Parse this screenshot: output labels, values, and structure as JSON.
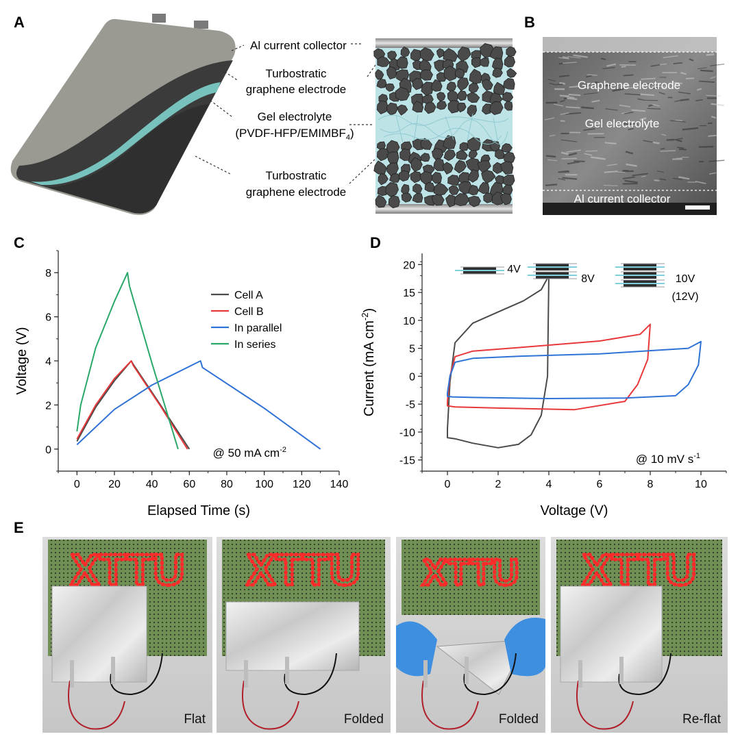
{
  "panels": {
    "a": {
      "letter": "A",
      "labels": {
        "al": "Al current collector",
        "el1a": "Turbostratic",
        "el1b": "graphene electrode",
        "gel1": "Gel electrolyte",
        "gel2": "(PVDF-HFP/EMIMBF",
        "gel_sub": "4",
        "gel_close": ")",
        "el2a": "Turbostratic",
        "el2b": "graphene electrode"
      }
    },
    "b": {
      "letter": "B",
      "labels": {
        "electrode": "Graphene electrode",
        "gel": "Gel electrolyte",
        "al": "Al current collector"
      }
    },
    "e": {
      "letter": "E",
      "board_text": "XTTU",
      "photos": [
        "Flat",
        "Folded",
        "Folded",
        "Re-flat"
      ]
    }
  },
  "colors": {
    "cell_a": "#4a4a4a",
    "cell_b": "#e8383b",
    "parallel": "#2f72d6",
    "series": "#2aa86a",
    "electrolyte": "#a8dde3",
    "led": "#ff2a2a"
  },
  "chart_data": [
    {
      "panel": "C",
      "type": "line",
      "xlabel": "Elapsed Time (s)",
      "ylabel": "Voltage (V)",
      "xlim": [
        -10,
        140
      ],
      "ylim": [
        -1,
        9
      ],
      "xticks": [
        0,
        20,
        40,
        60,
        80,
        100,
        120,
        140
      ],
      "yticks": [
        0,
        2,
        4,
        6,
        8
      ],
      "annotation": "@ 50 mA cm",
      "annotation_sup": "-2",
      "legend_position": "top-right",
      "series": [
        {
          "name": "Cell A",
          "color_key": "cell_a",
          "x": [
            0,
            10,
            20,
            29,
            30,
            45,
            60
          ],
          "y": [
            0.35,
            1.9,
            3.1,
            4.0,
            3.85,
            1.95,
            0.0
          ]
        },
        {
          "name": "Cell B",
          "color_key": "cell_b",
          "x": [
            0,
            10,
            20,
            29,
            30,
            45,
            59
          ],
          "y": [
            0.45,
            2.0,
            3.2,
            4.0,
            3.8,
            1.9,
            0.0
          ]
        },
        {
          "name": "In parallel",
          "color_key": "parallel",
          "x": [
            0,
            20,
            40,
            66,
            67,
            100,
            130
          ],
          "y": [
            0.2,
            1.8,
            2.9,
            4.0,
            3.7,
            1.85,
            0.0
          ]
        },
        {
          "name": "In series",
          "color_key": "series",
          "x": [
            0,
            2,
            10,
            20,
            27,
            28,
            40,
            54
          ],
          "y": [
            0.8,
            2.0,
            4.6,
            6.7,
            8.0,
            7.4,
            3.9,
            0.0
          ]
        }
      ]
    },
    {
      "panel": "D",
      "type": "line",
      "xlabel": "Voltage (V)",
      "ylabel": "Current (mA cm",
      "ylabel_sup": "-2",
      "ylabel_close": ")",
      "xlim": [
        -1,
        11
      ],
      "ylim": [
        -17,
        22
      ],
      "xticks": [
        0,
        2,
        4,
        6,
        8,
        10
      ],
      "yticks": [
        -15,
        -10,
        -5,
        0,
        5,
        10,
        15,
        20
      ],
      "annotation": "@ 10 mV s",
      "annotation_sup": "-1",
      "inset_labels": [
        "4V",
        "8V",
        "10V",
        "(12V)"
      ],
      "series": [
        {
          "color_key": "cell_a",
          "x": [
            0,
            0.1,
            0.3,
            1,
            2,
            3,
            3.7,
            4,
            3.95,
            3.7,
            3.3,
            2.8,
            2,
            1,
            0.3,
            0,
            0
          ],
          "y": [
            -9.5,
            -1,
            6,
            9.5,
            11.5,
            13.5,
            15.5,
            18,
            0,
            -7,
            -10.5,
            -12.2,
            -12.8,
            -12,
            -11.2,
            -11,
            -9.5
          ]
        },
        {
          "color_key": "cell_b",
          "x": [
            0,
            0.1,
            0.3,
            1,
            3,
            6,
            7.6,
            8,
            7.9,
            7.5,
            7,
            5,
            2,
            0.3,
            0,
            0
          ],
          "y": [
            -4.5,
            0,
            3.5,
            4.5,
            5.2,
            6.3,
            7.5,
            9.3,
            3,
            -1.5,
            -4.5,
            -6,
            -5.7,
            -5.5,
            -5.3,
            -4.5
          ]
        },
        {
          "color_key": "parallel",
          "x": [
            0,
            0.1,
            0.3,
            1,
            3,
            6,
            9.5,
            10,
            9.9,
            9.5,
            9,
            7,
            4,
            1,
            0.2,
            0,
            0
          ],
          "y": [
            -3,
            0,
            2.5,
            3.2,
            3.6,
            4,
            5,
            6.2,
            2,
            -1.5,
            -3.5,
            -3.9,
            -4,
            -3.8,
            -3.7,
            -3.6,
            -3
          ]
        }
      ]
    }
  ]
}
